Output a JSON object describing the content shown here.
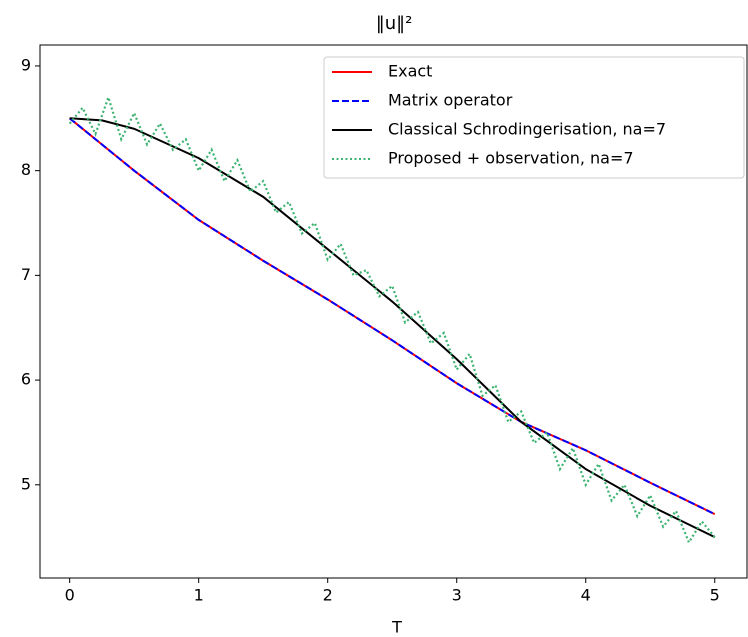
{
  "chart_data": {
    "type": "line",
    "title": "‖u‖²",
    "x_label": "T",
    "xlim": [
      -0.23,
      5.25
    ],
    "ylim": [
      4.11,
      9.2
    ],
    "xticks": [
      0,
      1,
      2,
      3,
      4,
      5
    ],
    "yticks": [
      5,
      6,
      7,
      8,
      9
    ],
    "legend": "upper right",
    "grid": false,
    "series": [
      {
        "name": "Exact",
        "color": "#ff0000",
        "linestyle": "solid",
        "x": [
          0,
          0.5,
          1,
          1.5,
          2,
          2.5,
          3,
          3.5,
          4,
          4.5,
          5
        ],
        "values": [
          8.5,
          8.0,
          7.53,
          7.14,
          6.77,
          6.38,
          5.97,
          5.6,
          5.33,
          5.02,
          4.72
        ]
      },
      {
        "name": "Matrix operator",
        "color": "#0000ff",
        "linestyle": "dashed",
        "x": [
          0,
          0.5,
          1,
          1.5,
          2,
          2.5,
          3,
          3.5,
          4,
          4.5,
          5
        ],
        "values": [
          8.5,
          8.0,
          7.53,
          7.14,
          6.77,
          6.38,
          5.97,
          5.6,
          5.33,
          5.02,
          4.72
        ]
      },
      {
        "name": "Classical Schrodingerisation, na=7",
        "color": "#000000",
        "linestyle": "solid",
        "x": [
          0,
          0.25,
          0.5,
          1,
          1.5,
          2,
          2.5,
          3,
          3.5,
          4,
          4.5,
          5
        ],
        "values": [
          8.5,
          8.48,
          8.4,
          8.12,
          7.75,
          7.25,
          6.75,
          6.2,
          5.6,
          5.15,
          4.8,
          4.5
        ]
      },
      {
        "name": "Proposed + observation, na=7",
        "color": "#3cb371",
        "linestyle": "dotted",
        "x": [
          0,
          0.1,
          0.2,
          0.3,
          0.4,
          0.5,
          0.6,
          0.7,
          0.8,
          0.9,
          1.0,
          1.1,
          1.2,
          1.3,
          1.4,
          1.5,
          1.6,
          1.7,
          1.8,
          1.9,
          2.0,
          2.1,
          2.2,
          2.3,
          2.4,
          2.5,
          2.6,
          2.7,
          2.8,
          2.9,
          3.0,
          3.1,
          3.2,
          3.3,
          3.4,
          3.5,
          3.6,
          3.7,
          3.8,
          3.9,
          4.0,
          4.1,
          4.2,
          4.3,
          4.4,
          4.5,
          4.6,
          4.7,
          4.8,
          4.9,
          5.0
        ],
        "values": [
          8.45,
          8.6,
          8.35,
          8.7,
          8.3,
          8.55,
          8.25,
          8.45,
          8.2,
          8.3,
          8.0,
          8.2,
          7.9,
          8.1,
          7.8,
          7.9,
          7.6,
          7.7,
          7.4,
          7.5,
          7.15,
          7.3,
          7.0,
          7.05,
          6.8,
          6.9,
          6.55,
          6.65,
          6.35,
          6.45,
          6.1,
          6.25,
          5.85,
          5.95,
          5.6,
          5.7,
          5.4,
          5.5,
          5.15,
          5.35,
          5.0,
          5.2,
          4.85,
          5.0,
          4.7,
          4.9,
          4.6,
          4.75,
          4.45,
          4.65,
          4.5
        ]
      }
    ]
  }
}
